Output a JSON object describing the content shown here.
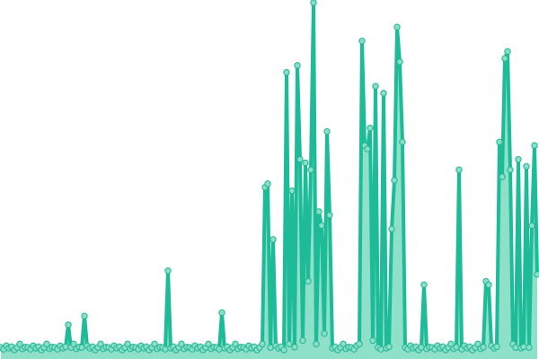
{
  "chart_data": {
    "type": "line",
    "title": "",
    "xlabel": "",
    "ylabel": "",
    "ylim": [
      0,
      100
    ],
    "grid": false,
    "legend": "none",
    "area_fill": true,
    "markers": true,
    "colors": {
      "line": "#1dbb98",
      "area": "#8ee0c9",
      "marker_fill": "#86dfc6",
      "marker_stroke": "#22b592"
    },
    "values": [
      1,
      0.5,
      1.5,
      0.8,
      1.2,
      0.3,
      1,
      2,
      0.6,
      1.1,
      1,
      0.5,
      1.5,
      0.8,
      1.2,
      0.3,
      1,
      2,
      0.6,
      1.1,
      1,
      0.5,
      1.5,
      0.8,
      1.2,
      7.5,
      1,
      2,
      0.6,
      1.1,
      1,
      10,
      1.5,
      0.8,
      1.2,
      0.3,
      1,
      2,
      0.6,
      1.1,
      1,
      0.5,
      1.5,
      0.8,
      1.2,
      0.3,
      1,
      2,
      0.6,
      1.1,
      1,
      0.5,
      1.5,
      0.8,
      1.2,
      0.3,
      1,
      2,
      0.6,
      1.1,
      1,
      0.5,
      23,
      0.8,
      1.2,
      0.3,
      1,
      2,
      0.6,
      1.1,
      1,
      0.5,
      1.5,
      0.8,
      1.2,
      0.3,
      1,
      2,
      0.6,
      1.1,
      1,
      0.5,
      11,
      0.8,
      1.2,
      0.3,
      1,
      2,
      0.6,
      1.1,
      1,
      0.5,
      1.5,
      0.8,
      1.2,
      0.3,
      1,
      2,
      47,
      48,
      1,
      32,
      1.5,
      0.8,
      1.2,
      0.3,
      80,
      2,
      46,
      1.1,
      82,
      55,
      3,
      54,
      20,
      52,
      100,
      2,
      40,
      36,
      5,
      63,
      39,
      0.8,
      1.2,
      0.3,
      1,
      2,
      0.6,
      1.1,
      1,
      0.5,
      1.5,
      2,
      89,
      59,
      58,
      64,
      3,
      76,
      1,
      0.5,
      74,
      0.8,
      1.2,
      35,
      49,
      93,
      83,
      60,
      1,
      0.5,
      1.5,
      0.8,
      1.2,
      0.3,
      1,
      19,
      0.6,
      1.1,
      1,
      0.5,
      1.5,
      0.8,
      1.2,
      0.3,
      1,
      2,
      0.6,
      1.1,
      52,
      0.5,
      1.5,
      0.8,
      1.2,
      0.3,
      1,
      2,
      0.6,
      1.1,
      20,
      19,
      1.5,
      0.8,
      1.2,
      60,
      50,
      84,
      86,
      52,
      2,
      1,
      55,
      0.8,
      1.2,
      53,
      1,
      36,
      59,
      22
    ]
  }
}
